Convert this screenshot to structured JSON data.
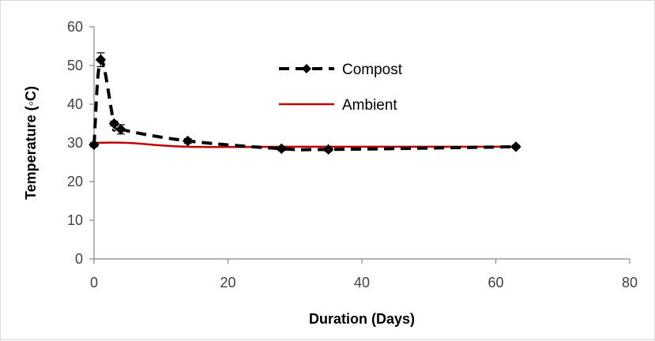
{
  "chart_data": {
    "type": "line",
    "title": "",
    "xlabel": "Duration (Days)",
    "ylabel": "Temperature (◦C)",
    "xlim": [
      0,
      80
    ],
    "ylim": [
      0,
      60
    ],
    "x_ticks": [
      "0",
      "20",
      "40",
      "60",
      "80"
    ],
    "y_ticks": [
      "0",
      "10",
      "20",
      "30",
      "40",
      "50",
      "60"
    ],
    "grid": false,
    "legend_position": "top-center",
    "series": [
      {
        "name": "Compost",
        "color": "#000000",
        "line_style": "dashed",
        "marker": "diamond",
        "x": [
          0,
          1,
          3,
          4,
          14,
          28,
          35,
          63
        ],
        "y": [
          29.5,
          51.5,
          35,
          33.5,
          30.5,
          28.5,
          28.3,
          29
        ],
        "error": [
          0.5,
          1.8,
          0.6,
          1.2,
          0.6,
          0.5,
          0.5,
          0.4
        ]
      },
      {
        "name": "Ambient",
        "color": "#c00000",
        "line_style": "solid",
        "marker": "none",
        "x": [
          0,
          5,
          14,
          28,
          35,
          63
        ],
        "y": [
          30,
          30,
          29,
          29,
          29,
          29
        ]
      }
    ]
  }
}
